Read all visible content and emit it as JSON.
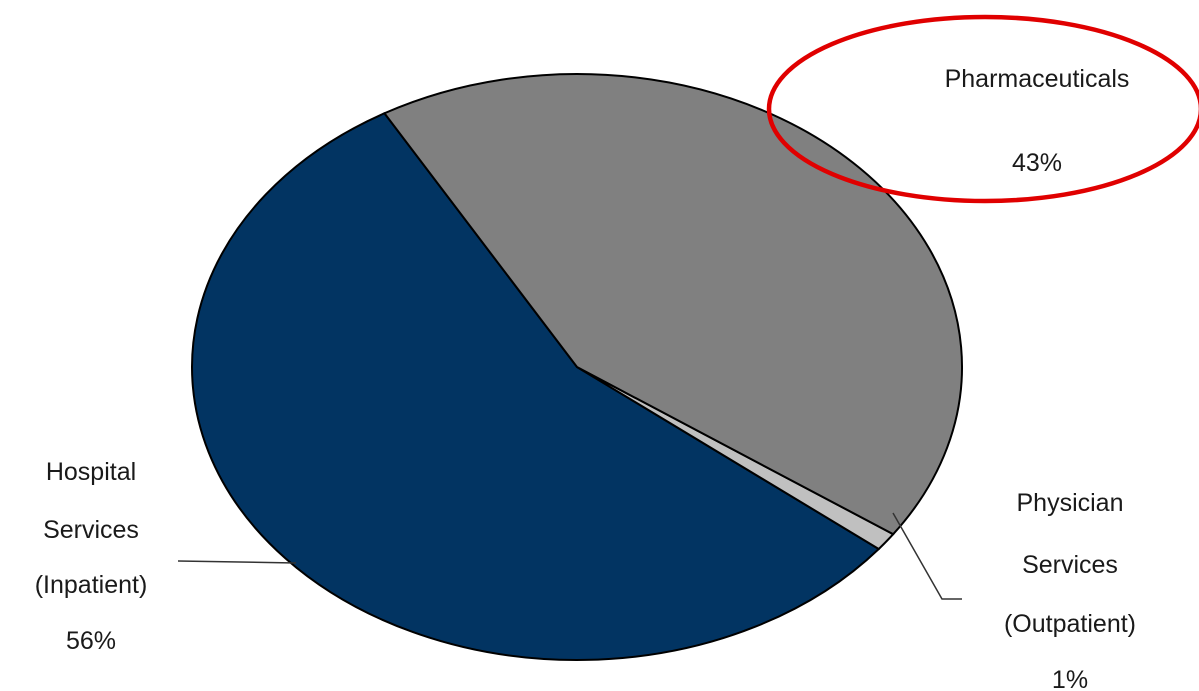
{
  "chart_data": {
    "type": "pie",
    "title": "",
    "slices": [
      {
        "label_lines": [
          "Hospital",
          "Services",
          "(Inpatient)"
        ],
        "value": 56,
        "value_label": "56%",
        "color": "#023462"
      },
      {
        "label_lines": [
          "Physician",
          "Services",
          "(Outpatient)"
        ],
        "value": 1,
        "value_label": "1%",
        "color": "#c0c0c0"
      },
      {
        "label_lines": [
          "Pharmaceuticals"
        ],
        "value": 43,
        "value_label": "43%",
        "color": "#808080"
      }
    ],
    "legend": "none",
    "highlight": {
      "shape": "ellipse",
      "color": "#e00000",
      "target": "Pharmaceuticals"
    }
  }
}
